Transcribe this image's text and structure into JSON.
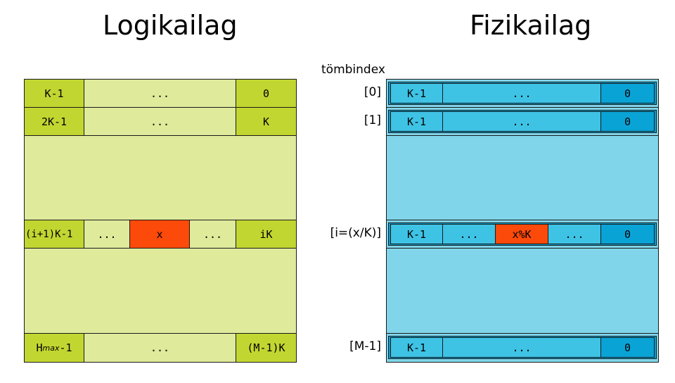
{
  "titles": {
    "logical": "Logikailag",
    "physical": "Fizikailag"
  },
  "index_header": "tömbindex",
  "logical": {
    "row1": {
      "left": "K-1",
      "mid": "...",
      "right": "0"
    },
    "row2": {
      "left": "2K-1",
      "mid": "...",
      "right": "K"
    },
    "row3": {
      "left": "(i+1)K-1",
      "mid1": "...",
      "center": "x",
      "mid2": "...",
      "right": "iK"
    },
    "row4": {
      "left_base": "H",
      "left_sub": "max",
      "left_suffix": "-1",
      "mid": "...",
      "right": "(M-1)K"
    }
  },
  "physical": {
    "indices": [
      "[0]",
      "[1]",
      "[i=(x/K)]",
      "[M-1]"
    ],
    "row1": {
      "left": "K-1",
      "mid": "...",
      "right": "0"
    },
    "row2": {
      "left": "K-1",
      "mid": "...",
      "right": "0"
    },
    "row3": {
      "left": "K-1",
      "mid1": "...",
      "center": "x%K",
      "mid2": "...",
      "right": "0"
    },
    "row4": {
      "left": "K-1",
      "mid": "...",
      "right": "0"
    }
  },
  "colors": {
    "logical_dark": "#c2d631",
    "logical_light": "#dfea9b",
    "highlight": "#fb4a0a",
    "physical_dark": "#0aa3d6",
    "physical_mid": "#3ec3e5",
    "physical_bg": "#80d5ea"
  }
}
